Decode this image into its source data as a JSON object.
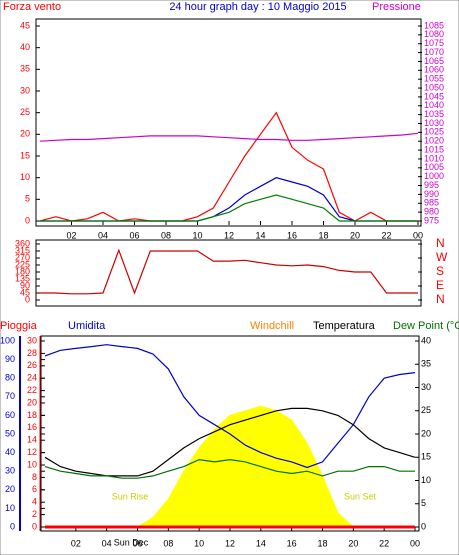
{
  "chart_data": [
    {
      "type": "line",
      "title": "24 hour graph day : 10 Maggio 2015",
      "x": [
        0,
        1,
        2,
        3,
        4,
        5,
        6,
        7,
        8,
        9,
        10,
        11,
        12,
        13,
        14,
        15,
        16,
        17,
        18,
        19,
        20,
        21,
        22,
        23,
        24
      ],
      "xlim": [
        0,
        24
      ],
      "xticks": [
        {
          "value": 2,
          "label": "02"
        },
        {
          "value": 4,
          "label": "04"
        },
        {
          "value": 6,
          "label": "06"
        },
        {
          "value": 8,
          "label": "08"
        },
        10,
        12,
        14,
        16,
        18,
        20,
        22,
        {
          "value": 24,
          "label": "00"
        }
      ],
      "ylim": [
        0,
        45
      ],
      "yticks": [
        0,
        5,
        10,
        15,
        20,
        25,
        30,
        35,
        40,
        45
      ],
      "y2lim": [
        975,
        1085
      ],
      "y2ticks": [
        975,
        980,
        985,
        990,
        995,
        1000,
        1005,
        1010,
        1015,
        1020,
        1025,
        1030,
        1035,
        1040,
        1045,
        1050,
        1055,
        1060,
        1065,
        1070,
        1075,
        1080,
        1085
      ],
      "series": [
        {
          "name": "Forza vento",
          "color": "#ff0000",
          "values": [
            0,
            1,
            0,
            0.5,
            2,
            0,
            0.5,
            0,
            0,
            0,
            1,
            3,
            9,
            15,
            20,
            25,
            17,
            14,
            12,
            2,
            0,
            2,
            0,
            0,
            0
          ]
        },
        {
          "color": "#0000cc",
          "values": [
            0,
            0,
            0,
            0,
            0,
            0,
            0,
            0,
            0,
            0,
            0,
            1,
            3,
            6,
            8,
            10,
            9,
            8,
            6,
            1,
            0,
            0,
            0,
            0,
            0
          ]
        },
        {
          "color": "#008000",
          "values": [
            0,
            0,
            0,
            0,
            0,
            0,
            0,
            0,
            0,
            0,
            0,
            1,
            2,
            4,
            5,
            6,
            5,
            4,
            3,
            0,
            0,
            0,
            0,
            0,
            0
          ]
        },
        {
          "name": "Pressione",
          "color": "#cc00cc",
          "axis": "y2",
          "values": [
            1020,
            1020.5,
            1021,
            1021,
            1021.5,
            1022,
            1022.5,
            1023,
            1023,
            1023,
            1023,
            1022.5,
            1022,
            1021.5,
            1021,
            1021,
            1020.5,
            1020.5,
            1021,
            1021.5,
            1022,
            1022.5,
            1023,
            1023.5,
            1024.5
          ]
        }
      ]
    },
    {
      "type": "line",
      "x": [
        0,
        1,
        2,
        3,
        4,
        5,
        6,
        7,
        8,
        9,
        10,
        11,
        12,
        13,
        14,
        15,
        16,
        17,
        18,
        19,
        20,
        21,
        22,
        23,
        24
      ],
      "xlim": [
        0,
        24
      ],
      "ylim": [
        0,
        360
      ],
      "yticks": [
        0,
        45,
        90,
        135,
        180,
        225,
        270,
        315,
        360
      ],
      "y2lim": [
        0,
        360
      ],
      "y2ticks": [
        {
          "value": 360,
          "label": "N"
        },
        {
          "value": 270,
          "label": "W"
        },
        {
          "value": 180,
          "label": "S"
        },
        {
          "value": 90,
          "label": "E"
        },
        {
          "value": 0,
          "label": "N"
        }
      ],
      "series": [
        {
          "color": "#cc0000",
          "values": [
            45,
            45,
            40,
            40,
            45,
            320,
            45,
            315,
            315,
            315,
            315,
            250,
            250,
            255,
            240,
            225,
            220,
            225,
            215,
            190,
            180,
            180,
            45,
            45,
            45
          ]
        }
      ]
    },
    {
      "type": "line",
      "x": [
        0,
        1,
        2,
        3,
        4,
        5,
        6,
        7,
        8,
        9,
        10,
        11,
        12,
        13,
        14,
        15,
        16,
        17,
        18,
        19,
        20,
        21,
        22,
        23,
        24
      ],
      "xlim": [
        0,
        24
      ],
      "xticks": [
        {
          "value": 2,
          "label": "02"
        },
        {
          "value": 4,
          "label": "04"
        },
        {
          "value": 6,
          "label": "06"
        },
        {
          "value": 8,
          "label": "08"
        },
        10,
        12,
        14,
        16,
        18,
        20,
        22,
        {
          "value": 24,
          "label": "00"
        }
      ],
      "ylim": [
        0,
        100
      ],
      "yticks": [
        0,
        10,
        20,
        30,
        40,
        50,
        60,
        70,
        80,
        90,
        100
      ],
      "y3lim": [
        0,
        30
      ],
      "y3ticks": [
        0,
        2,
        4,
        6,
        8,
        10,
        12,
        14,
        16,
        18,
        20,
        22,
        24,
        26,
        28,
        30
      ],
      "y2lim": [
        0,
        40
      ],
      "y2ticks": [
        0,
        5,
        10,
        15,
        20,
        25,
        30,
        35,
        40
      ],
      "annotations": [
        "Sun Rise",
        "Sun Set",
        "Sun Dec"
      ],
      "series": [
        {
          "color": "#ffff00",
          "axis": "y2",
          "area": true,
          "values": [
            null,
            null,
            null,
            null,
            null,
            null,
            0,
            2,
            6,
            12,
            17,
            21,
            24,
            25,
            26,
            25,
            23,
            18,
            11,
            3,
            0,
            null,
            null,
            null,
            null
          ]
        },
        {
          "name": "Pioggia",
          "color": "#ff0000",
          "axis": "y3",
          "values": [
            0,
            0,
            0,
            0,
            0,
            0,
            0,
            0,
            0,
            0,
            0,
            0,
            0,
            0,
            0,
            0,
            0,
            0,
            0,
            0,
            0,
            0,
            0,
            0,
            0
          ]
        },
        {
          "name": "Umidita",
          "color": "#0000cc",
          "axis": "y",
          "values": [
            92,
            95,
            96,
            97,
            98,
            97,
            96,
            93,
            85,
            70,
            60,
            55,
            50,
            44,
            40,
            37,
            35,
            32,
            35,
            45,
            55,
            70,
            80,
            82,
            83
          ]
        },
        {
          "name": "Windchill",
          "color": "#ff8000",
          "axis": "y2",
          "values": [
            null,
            null,
            null,
            null,
            null,
            null,
            null,
            null,
            null,
            null,
            null,
            null,
            null,
            null,
            null,
            null,
            null,
            null,
            null,
            null,
            null,
            null,
            null,
            null,
            null
          ]
        },
        {
          "name": "Temperatura",
          "color": "#000000",
          "axis": "y2",
          "values": [
            15,
            13,
            12,
            11.5,
            11,
            11,
            11,
            12,
            14.5,
            17,
            19,
            20.5,
            22,
            23,
            24,
            25,
            25.5,
            25.5,
            25,
            24,
            22,
            19,
            17,
            16,
            15
          ]
        },
        {
          "name": "Dew Point (°C",
          "color": "#007000",
          "axis": "y2",
          "values": [
            13,
            12,
            11.5,
            11,
            11,
            10.5,
            10.5,
            11,
            12,
            13,
            14.5,
            14,
            14.5,
            14,
            13,
            12,
            11.5,
            12,
            11,
            12,
            12,
            13,
            13,
            12,
            12
          ]
        }
      ]
    }
  ]
}
